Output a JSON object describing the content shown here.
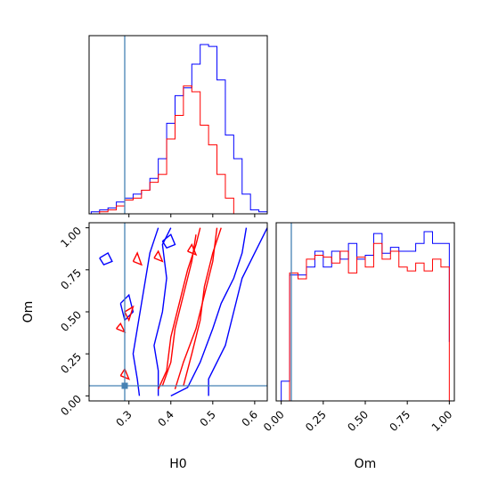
{
  "chart_data": {
    "type": "corner",
    "parameters": [
      "H0",
      "Om"
    ],
    "truth": {
      "H0": 0.29,
      "Om": 0.06
    },
    "colors": {
      "series_a": "#0000ff",
      "series_b": "#ff0000",
      "truth": "#4682b4"
    },
    "panels": [
      {
        "id": "H0-marginal",
        "type": "step-histogram",
        "xlim": [
          0.205,
          0.63
        ],
        "bin_edges": [
          0.21,
          0.23,
          0.25,
          0.27,
          0.29,
          0.31,
          0.33,
          0.35,
          0.37,
          0.39,
          0.41,
          0.43,
          0.45,
          0.47,
          0.49,
          0.51,
          0.53,
          0.55,
          0.57,
          0.59,
          0.61,
          0.63
        ],
        "series": [
          {
            "color": "blue",
            "counts": [
              0.01,
              0.02,
              0.03,
              0.06,
              0.08,
              0.1,
              0.12,
              0.18,
              0.28,
              0.46,
              0.6,
              0.64,
              0.76,
              0.86,
              0.85,
              0.68,
              0.4,
              0.28,
              0.1,
              0.02,
              0.01
            ]
          },
          {
            "color": "red",
            "counts": [
              0.0,
              0.01,
              0.02,
              0.04,
              0.07,
              0.08,
              0.12,
              0.16,
              0.2,
              0.38,
              0.5,
              0.65,
              0.62,
              0.45,
              0.35,
              0.2,
              0.08,
              0.0,
              0.0,
              0.0,
              0.0
            ]
          }
        ]
      },
      {
        "id": "Om-marginal",
        "type": "step-histogram",
        "xlim": [
          -0.03,
          1.03
        ],
        "xticks": [
          "0.00",
          "0.25",
          "0.50",
          "0.75",
          "1.00"
        ],
        "xlabel": "Om",
        "bin_edges": [
          0.0,
          0.05,
          0.1,
          0.15,
          0.2,
          0.25,
          0.3,
          0.35,
          0.4,
          0.45,
          0.5,
          0.55,
          0.6,
          0.65,
          0.7,
          0.75,
          0.8,
          0.85,
          0.9,
          0.95,
          1.0
        ],
        "series": [
          {
            "color": "blue",
            "counts": [
              0.1,
              0.64,
              0.64,
              0.68,
              0.76,
              0.68,
              0.76,
              0.72,
              0.8,
              0.72,
              0.74,
              0.85,
              0.75,
              0.78,
              0.76,
              0.76,
              0.8,
              0.86,
              0.8,
              0.8,
              0.3
            ]
          },
          {
            "color": "red",
            "counts": [
              0.0,
              0.65,
              0.62,
              0.72,
              0.74,
              0.73,
              0.7,
              0.76,
              0.65,
              0.73,
              0.68,
              0.8,
              0.72,
              0.76,
              0.68,
              0.66,
              0.7,
              0.66,
              0.72,
              0.68,
              0.0
            ]
          }
        ]
      },
      {
        "id": "H0-Om-contours",
        "type": "contour",
        "xlim": [
          0.205,
          0.63
        ],
        "ylim": [
          -0.03,
          1.03
        ],
        "xticks": [
          "0.3",
          "0.4",
          "0.5",
          "0.6"
        ],
        "yticks": [
          "0.00",
          "0.25",
          "0.50",
          "0.75",
          "1.00"
        ],
        "xlabel": "H0",
        "ylabel": "Om",
        "series": [
          {
            "color": "blue",
            "levels": [
              [
                [
                  0.325,
                  0.0
                ],
                [
                  0.32,
                  0.1
                ],
                [
                  0.31,
                  0.25
                ],
                [
                  0.32,
                  0.4
                ],
                [
                  0.33,
                  0.55
                ],
                [
                  0.34,
                  0.7
                ],
                [
                  0.35,
                  0.85
                ],
                [
                  0.37,
                  1.0
                ]
              ],
              [
                [
                  0.4,
                  0.0
                ],
                [
                  0.44,
                  0.05
                ],
                [
                  0.47,
                  0.2
                ],
                [
                  0.5,
                  0.4
                ],
                [
                  0.52,
                  0.55
                ],
                [
                  0.55,
                  0.7
                ],
                [
                  0.57,
                  0.85
                ],
                [
                  0.58,
                  1.0
                ]
              ],
              [
                [
                  0.37,
                  0.0
                ],
                [
                  0.37,
                  0.15
                ],
                [
                  0.36,
                  0.3
                ],
                [
                  0.38,
                  0.5
                ],
                [
                  0.39,
                  0.7
                ],
                [
                  0.38,
                  0.9
                ],
                [
                  0.4,
                  1.0
                ]
              ],
              [
                [
                  0.49,
                  0.0
                ],
                [
                  0.49,
                  0.1
                ],
                [
                  0.53,
                  0.3
                ],
                [
                  0.55,
                  0.5
                ],
                [
                  0.57,
                  0.7
                ],
                [
                  0.6,
                  0.85
                ],
                [
                  0.63,
                  1.0
                ]
              ],
              [
                [
                  0.23,
                  0.82
                ],
                [
                  0.25,
                  0.85
                ],
                [
                  0.26,
                  0.8
                ],
                [
                  0.24,
                  0.78
                ],
                [
                  0.23,
                  0.82
                ]
              ],
              [
                [
                  0.28,
                  0.55
                ],
                [
                  0.3,
                  0.6
                ],
                [
                  0.31,
                  0.5
                ],
                [
                  0.29,
                  0.45
                ],
                [
                  0.28,
                  0.55
                ]
              ],
              [
                [
                  0.38,
                  0.92
                ],
                [
                  0.4,
                  0.96
                ],
                [
                  0.41,
                  0.9
                ],
                [
                  0.39,
                  0.88
                ],
                [
                  0.38,
                  0.92
                ]
              ]
            ]
          },
          {
            "color": "red",
            "levels": [
              [
                [
                  0.37,
                  0.04
                ],
                [
                  0.39,
                  0.15
                ],
                [
                  0.4,
                  0.35
                ],
                [
                  0.42,
                  0.55
                ],
                [
                  0.44,
                  0.75
                ],
                [
                  0.46,
                  0.9
                ],
                [
                  0.47,
                  1.0
                ]
              ],
              [
                [
                  0.41,
                  0.04
                ],
                [
                  0.43,
                  0.2
                ],
                [
                  0.46,
                  0.4
                ],
                [
                  0.48,
                  0.6
                ],
                [
                  0.5,
                  0.8
                ],
                [
                  0.51,
                  1.0
                ]
              ],
              [
                [
                  0.38,
                  0.06
                ],
                [
                  0.4,
                  0.2
                ],
                [
                  0.41,
                  0.4
                ],
                [
                  0.43,
                  0.6
                ],
                [
                  0.45,
                  0.8
                ],
                [
                  0.46,
                  0.96
                ]
              ],
              [
                [
                  0.43,
                  0.06
                ],
                [
                  0.45,
                  0.25
                ],
                [
                  0.47,
                  0.45
                ],
                [
                  0.48,
                  0.65
                ],
                [
                  0.5,
                  0.85
                ],
                [
                  0.52,
                  1.0
                ]
              ],
              [
                [
                  0.29,
                  0.5
                ],
                [
                  0.31,
                  0.53
                ],
                [
                  0.3,
                  0.45
                ],
                [
                  0.29,
                  0.5
                ]
              ],
              [
                [
                  0.31,
                  0.8
                ],
                [
                  0.32,
                  0.85
                ],
                [
                  0.33,
                  0.78
                ],
                [
                  0.31,
                  0.8
                ]
              ],
              [
                [
                  0.36,
                  0.82
                ],
                [
                  0.37,
                  0.86
                ],
                [
                  0.38,
                  0.8
                ],
                [
                  0.36,
                  0.82
                ]
              ],
              [
                [
                  0.44,
                  0.86
                ],
                [
                  0.45,
                  0.9
                ],
                [
                  0.46,
                  0.84
                ],
                [
                  0.44,
                  0.86
                ]
              ],
              [
                [
                  0.27,
                  0.4
                ],
                [
                  0.28,
                  0.43
                ],
                [
                  0.29,
                  0.38
                ],
                [
                  0.27,
                  0.4
                ]
              ],
              [
                [
                  0.28,
                  0.12
                ],
                [
                  0.29,
                  0.16
                ],
                [
                  0.3,
                  0.1
                ],
                [
                  0.28,
                  0.12
                ]
              ]
            ]
          }
        ]
      }
    ]
  }
}
